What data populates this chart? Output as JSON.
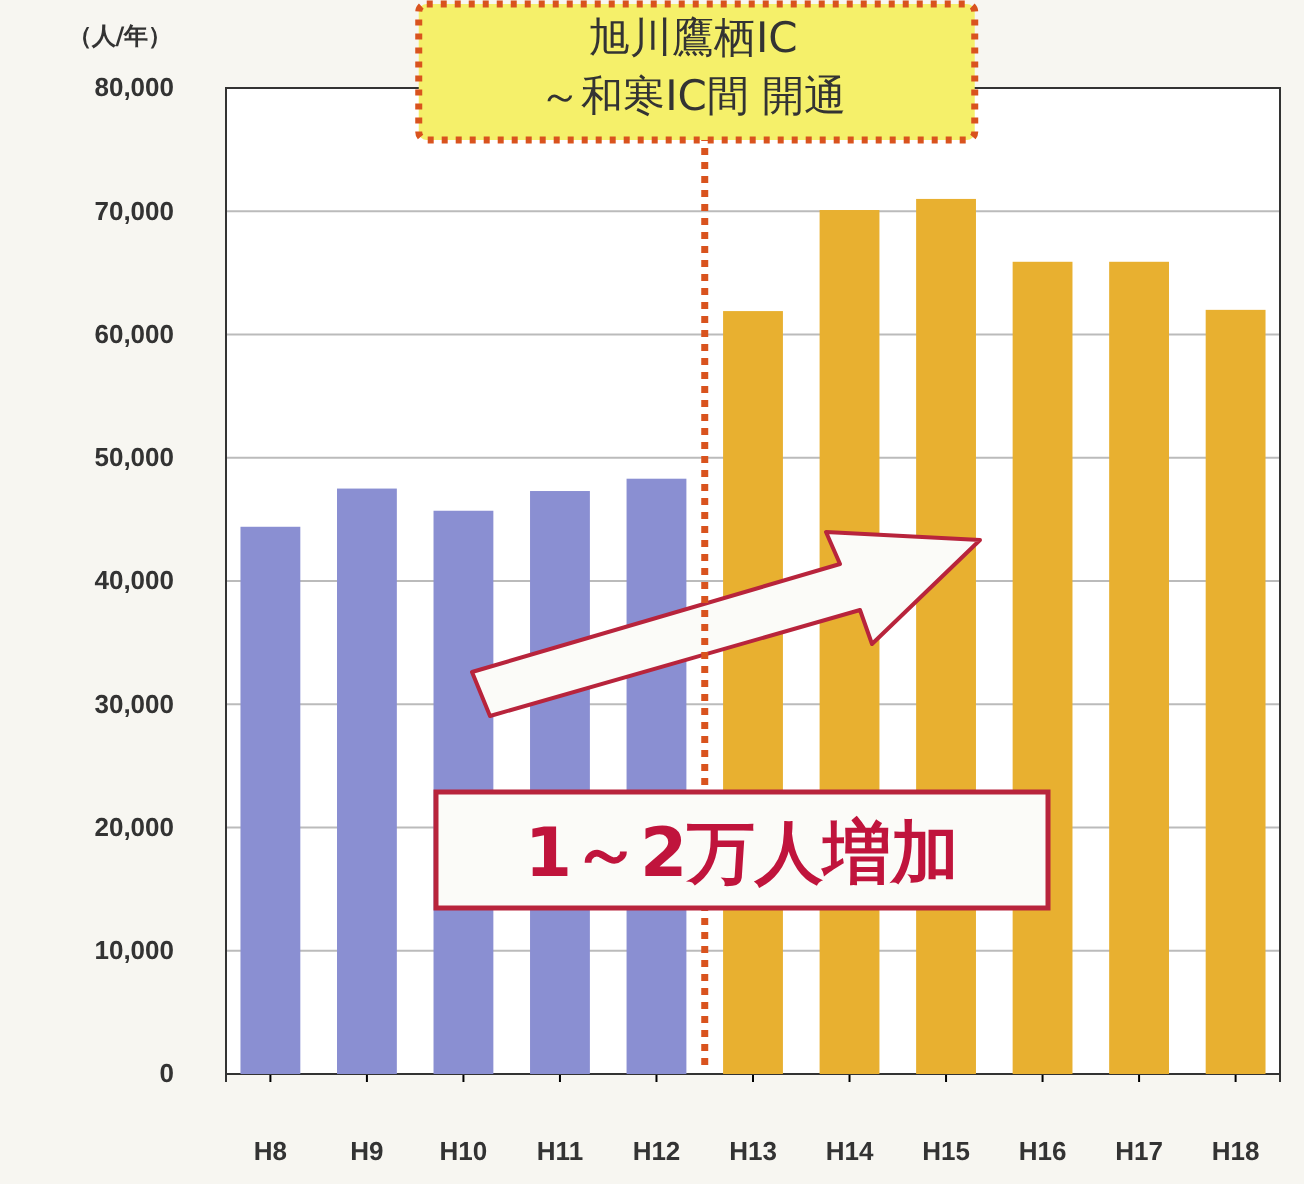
{
  "chart_data": {
    "type": "bar",
    "ylabel": "（人/年）",
    "categories": [
      "H8",
      "H9",
      "H10",
      "H11",
      "H12",
      "H13",
      "H14",
      "H15",
      "H16",
      "H17",
      "H18"
    ],
    "values": [
      44400,
      47500,
      45700,
      47300,
      48300,
      61900,
      70100,
      71000,
      65900,
      65900,
      62000
    ],
    "colors": [
      "#8a8fd2",
      "#8a8fd2",
      "#8a8fd2",
      "#8a8fd2",
      "#8a8fd2",
      "#e8b030",
      "#e8b030",
      "#e8b030",
      "#e8b030",
      "#e8b030",
      "#e8b030"
    ],
    "ylim": [
      0,
      80000
    ],
    "yticks": [
      {
        "value": 0,
        "label": "0"
      },
      {
        "value": 10000,
        "label": "10,000"
      },
      {
        "value": 20000,
        "label": "20,000"
      },
      {
        "value": 30000,
        "label": "30,000"
      },
      {
        "value": 40000,
        "label": "40,000"
      },
      {
        "value": 50000,
        "label": "50,000"
      },
      {
        "value": 60000,
        "label": "60,000"
      },
      {
        "value": 70000,
        "label": "70,000"
      },
      {
        "value": 80000,
        "label": "80,000"
      }
    ],
    "grid": "y",
    "annotations": [
      "旭川鷹栖IC\n～和寒IC間  開通",
      "1～2万人増加"
    ]
  }
}
